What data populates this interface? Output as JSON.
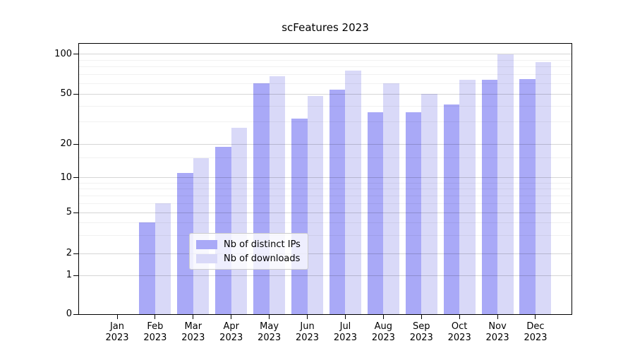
{
  "title": "scFeatures 2023",
  "legend": {
    "items": [
      {
        "label": "Nb of distinct IPs",
        "color": "#a9a9f7"
      },
      {
        "label": "Nb of downloads",
        "color": "#d9d9f8"
      }
    ]
  },
  "y_axis": {
    "tick_labels": [
      "100",
      "50",
      "20",
      "10",
      "5",
      "2",
      "1",
      "0"
    ],
    "ticks": [
      100,
      50,
      20,
      10,
      5,
      2,
      1,
      0
    ],
    "minor_ticks": [
      3,
      4,
      6,
      7,
      8,
      9,
      15,
      30,
      40,
      60,
      70,
      80,
      90
    ]
  },
  "x_axis": {
    "months": [
      "Jan",
      "Feb",
      "Mar",
      "Apr",
      "May",
      "Jun",
      "Jul",
      "Aug",
      "Sep",
      "Oct",
      "Nov",
      "Dec"
    ],
    "year": "2023"
  },
  "colors": {
    "bar_distinct_ips": "#a9a9f7",
    "bar_downloads": "#d9d9f8",
    "grid_major": "rgba(0,0,0,0.16)",
    "grid_minor": "rgba(0,0,0,0.055)"
  },
  "chart_data": {
    "type": "bar",
    "title": "scFeatures 2023",
    "xlabel": "",
    "ylabel": "",
    "yscale": "symlog",
    "ylim": [
      0,
      120
    ],
    "grid": true,
    "legend_position": "lower center",
    "categories": [
      "Jan 2023",
      "Feb 2023",
      "Mar 2023",
      "Apr 2023",
      "May 2023",
      "Jun 2023",
      "Jul 2023",
      "Aug 2023",
      "Sep 2023",
      "Oct 2023",
      "Nov 2023",
      "Dec 2023"
    ],
    "series": [
      {
        "name": "Nb of distinct IPs",
        "values": [
          0,
          4,
          11,
          19,
          60,
          32,
          54,
          36,
          36,
          41,
          64,
          65
        ]
      },
      {
        "name": "Nb of downloads",
        "values": [
          0,
          6,
          15,
          27,
          68,
          48,
          75,
          60,
          50,
          64,
          100,
          87
        ]
      }
    ]
  }
}
